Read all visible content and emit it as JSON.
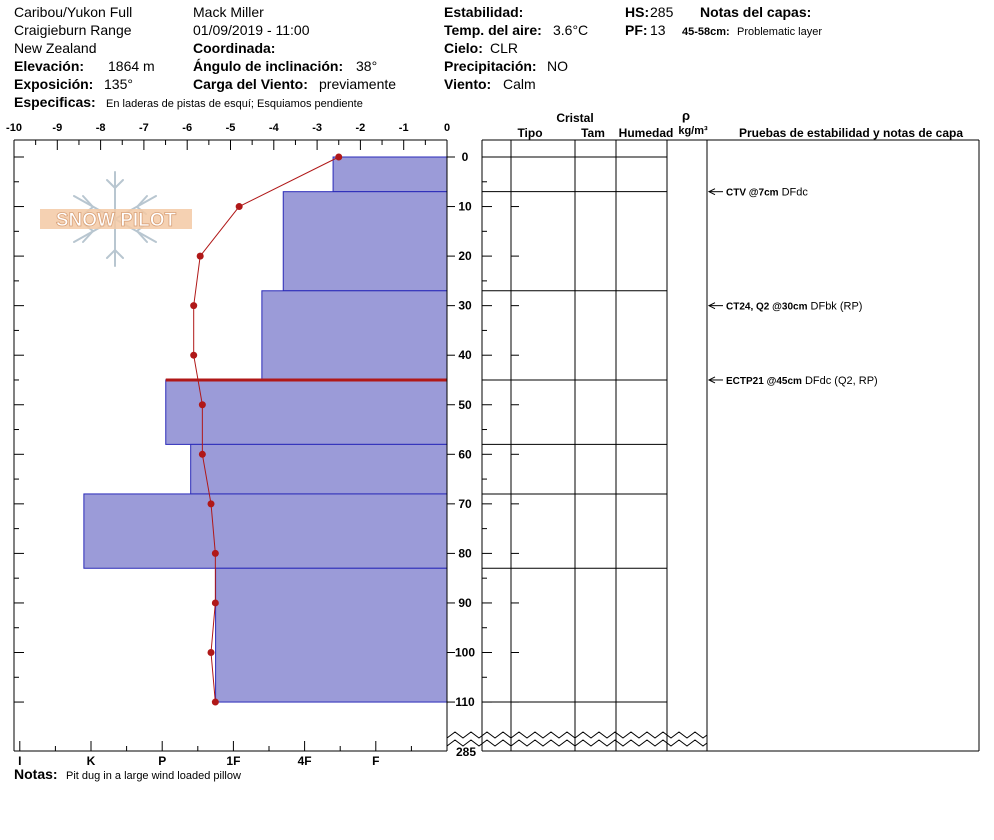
{
  "header": {
    "location_line1": "Caribou/Yukon Full",
    "location_line2": "Craigieburn Range",
    "location_line3": "New Zealand",
    "elevation_label": "Elevación:",
    "elevation_value": "1864 m",
    "aspect_label": "Exposición:",
    "aspect_value": "135°",
    "specifics_label": "Especificas:",
    "specifics_value": "En laderas de pistas de esquí; Esquiamos pendiente",
    "observer": "Mack Miller",
    "datetime": "01/09/2019 - 11:00",
    "coord_label": "Coordinada:",
    "slope_label": "Ángulo de inclinación:",
    "slope_value": "38°",
    "wind_load_label": "Carga del Viento:",
    "wind_load_value": "previamente",
    "stability_label": "Estabilidad:",
    "air_temp_label": "Temp. del aire:",
    "air_temp_value": "3.6°C",
    "sky_label": "Cielo:",
    "sky_value": "CLR",
    "precip_label": "Precipitación:",
    "precip_value": "NO",
    "wind_label": "Viento:",
    "wind_value": "Calm",
    "hs_label": "HS:",
    "hs_value": "285",
    "pf_label": "PF:",
    "pf_value": "13",
    "layer_notes_label": "Notas del capas:",
    "layer_note_range": "45-58cm:",
    "layer_note_text": "Problematic layer"
  },
  "logo": {
    "text": "SNOW PILOT"
  },
  "table": {
    "crystal_header": "Cristal",
    "type_header": "Tipo",
    "size_header": "Tam",
    "moisture_header": "Humedad",
    "density_symbol": "ρ",
    "density_unit": "kg/m³",
    "tests_header": "Pruebas de estabilidad y notas de capa"
  },
  "footer": {
    "notes_label": "Notas:",
    "notes_value": "Pit dug in a large wind loaded pillow"
  },
  "chart_data": {
    "type": "bar",
    "temp_axis": {
      "ticks": [
        -10,
        -9,
        -8,
        -7,
        -6,
        -5,
        -4,
        -3,
        -2,
        -1,
        0
      ],
      "range": [
        -10,
        0
      ]
    },
    "depth_axis": {
      "ticks": [
        0,
        10,
        20,
        30,
        40,
        50,
        60,
        70,
        80,
        90,
        100,
        110
      ],
      "range": [
        0,
        110
      ],
      "bottom_label": "285"
    },
    "hardness_labels": [
      "I",
      "K",
      "P",
      "1F",
      "4F",
      "F"
    ],
    "hardness_scale": {
      "F": 1,
      "4F": 2,
      "1F": 3,
      "P": 4,
      "K": 5,
      "I": 6
    },
    "layers": [
      {
        "top": 0,
        "bottom": 7,
        "hardness": 1.6
      },
      {
        "top": 7,
        "bottom": 27,
        "hardness": 2.3
      },
      {
        "top": 27,
        "bottom": 45,
        "hardness": 2.6
      },
      {
        "top": 45,
        "bottom": 58,
        "hardness": 3.95
      },
      {
        "top": 58,
        "bottom": 68,
        "hardness": 3.6
      },
      {
        "top": 68,
        "bottom": 83,
        "hardness": 5.1
      },
      {
        "top": 83,
        "bottom": 110,
        "hardness": 3.25
      }
    ],
    "problematic_layer": {
      "top": 45,
      "bottom": 58
    },
    "temperature_profile": [
      {
        "depth": 0,
        "temp": -2.5
      },
      {
        "depth": 10,
        "temp": -4.8
      },
      {
        "depth": 20,
        "temp": -5.7
      },
      {
        "depth": 30,
        "temp": -5.85
      },
      {
        "depth": 40,
        "temp": -5.85
      },
      {
        "depth": 50,
        "temp": -5.65
      },
      {
        "depth": 60,
        "temp": -5.65
      },
      {
        "depth": 70,
        "temp": -5.45
      },
      {
        "depth": 80,
        "temp": -5.35
      },
      {
        "depth": 90,
        "temp": -5.35
      },
      {
        "depth": 100,
        "temp": -5.45
      },
      {
        "depth": 110,
        "temp": -5.35
      }
    ],
    "stability_tests": [
      {
        "depth": 7,
        "label": "CTV @7cm",
        "note": "DFdc"
      },
      {
        "depth": 30,
        "label": "CT24, Q2 @30cm",
        "note": "DFbk (RP)"
      },
      {
        "depth": 45,
        "label": "ECTP21 @45cm",
        "note": "DFdc (Q2, RP)"
      }
    ],
    "colors": {
      "layer_fill": "#9b9bd8",
      "layer_stroke": "#2a2ab8",
      "temp_line": "#b01818",
      "problem_line": "#b01818"
    }
  }
}
